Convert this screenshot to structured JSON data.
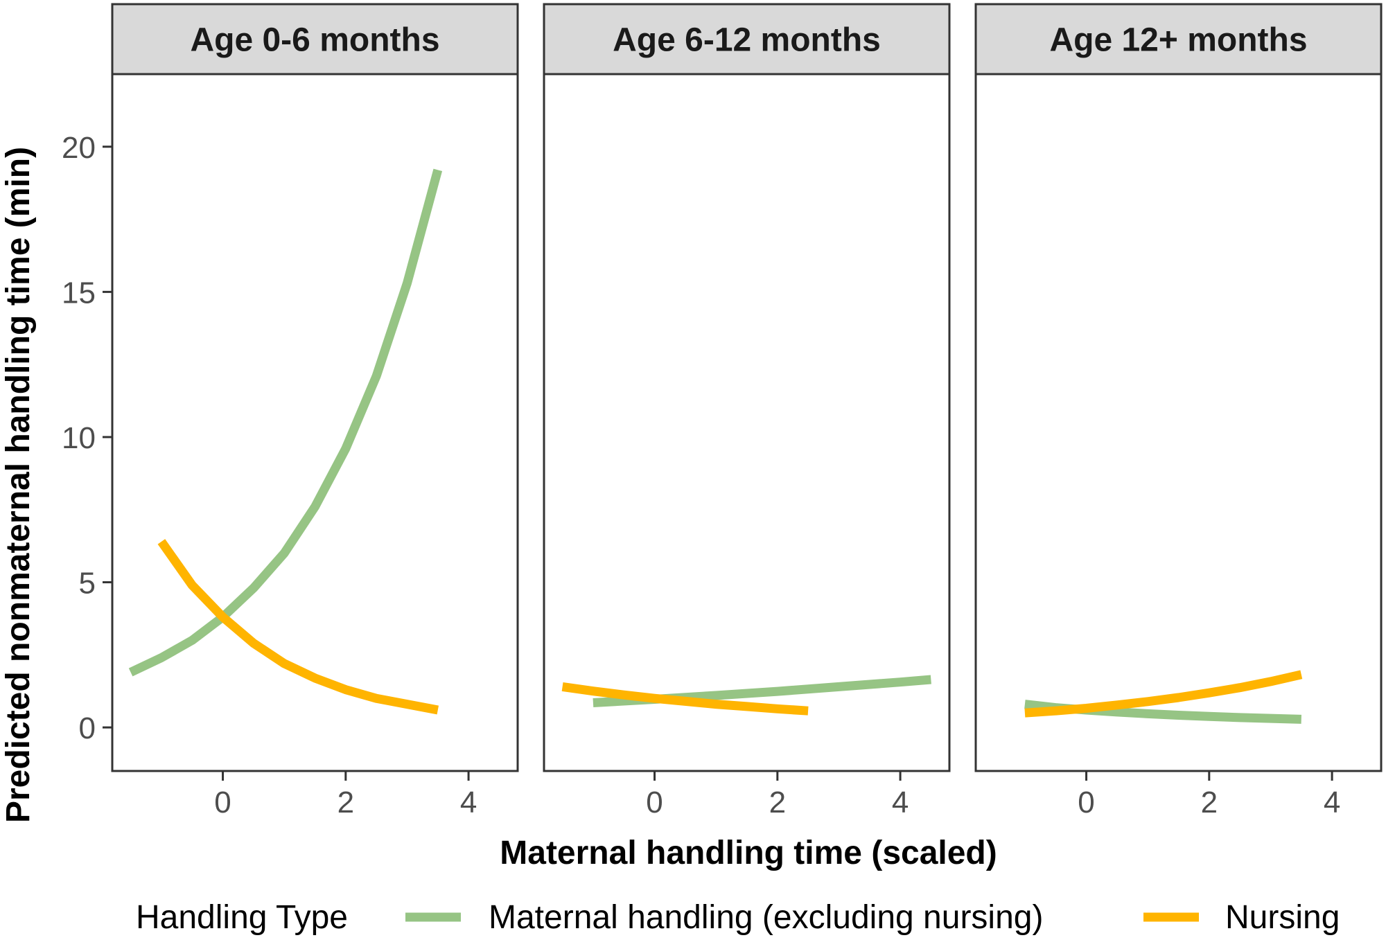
{
  "chart_data": {
    "type": "line",
    "xlabel": "Maternal handling time (scaled)",
    "ylabel": "Predicted nonmaternal handling time (min)",
    "xlim": [
      -1.8,
      4.8
    ],
    "ylim": [
      -1.5,
      22.5
    ],
    "x_ticks": [
      0,
      2,
      4
    ],
    "y_ticks": [
      0,
      5,
      10,
      15,
      20
    ],
    "grid": false,
    "legend": {
      "position": "bottom",
      "title": "Handling Type",
      "entries": [
        {
          "label": "Maternal handling (excluding nursing)",
          "color": "#96c484"
        },
        {
          "label": "Nursing",
          "color": "#ffb400"
        }
      ]
    },
    "panels": [
      {
        "strip": "Age 0-6 months",
        "series": [
          {
            "name": "Maternal handling (excluding nursing)",
            "color": "#96c484",
            "x": [
              -1.5,
              -1.0,
              -0.5,
              0.0,
              0.5,
              1.0,
              1.5,
              2.0,
              2.5,
              3.0,
              3.5
            ],
            "y": [
              1.9,
              2.4,
              3.0,
              3.8,
              4.8,
              6.0,
              7.6,
              9.6,
              12.1,
              15.3,
              19.2
            ]
          },
          {
            "name": "Nursing",
            "color": "#ffb400",
            "x": [
              -1.0,
              -0.5,
              0.0,
              0.5,
              1.0,
              1.5,
              2.0,
              2.5,
              3.0,
              3.5
            ],
            "y": [
              6.4,
              4.9,
              3.8,
              2.9,
              2.2,
              1.7,
              1.3,
              1.0,
              0.8,
              0.6
            ]
          }
        ]
      },
      {
        "strip": "Age 6-12 months",
        "series": [
          {
            "name": "Maternal handling (excluding nursing)",
            "color": "#96c484",
            "x": [
              -1.0,
              0.0,
              1.0,
              2.0,
              3.0,
              4.0,
              4.5
            ],
            "y": [
              0.85,
              0.97,
              1.1,
              1.24,
              1.4,
              1.56,
              1.65
            ]
          },
          {
            "name": "Nursing",
            "color": "#ffb400",
            "x": [
              -1.5,
              -1.0,
              -0.5,
              0.0,
              0.5,
              1.0,
              1.5,
              2.0,
              2.5
            ],
            "y": [
              1.4,
              1.25,
              1.12,
              1.0,
              0.9,
              0.8,
              0.72,
              0.64,
              0.57
            ]
          }
        ]
      },
      {
        "strip": "Age 12+ months",
        "series": [
          {
            "name": "Maternal handling (excluding nursing)",
            "color": "#96c484",
            "x": [
              -1.0,
              -0.5,
              0.0,
              0.5,
              1.0,
              1.5,
              2.0,
              2.5,
              3.0,
              3.5
            ],
            "y": [
              0.8,
              0.68,
              0.6,
              0.53,
              0.47,
              0.42,
              0.38,
              0.34,
              0.31,
              0.28
            ]
          },
          {
            "name": "Nursing",
            "color": "#ffb400",
            "x": [
              -1.0,
              -0.5,
              0.0,
              0.5,
              1.0,
              1.5,
              2.0,
              2.5,
              3.0,
              3.5
            ],
            "y": [
              0.5,
              0.57,
              0.66,
              0.77,
              0.89,
              1.03,
              1.19,
              1.37,
              1.58,
              1.82
            ]
          }
        ]
      }
    ]
  }
}
